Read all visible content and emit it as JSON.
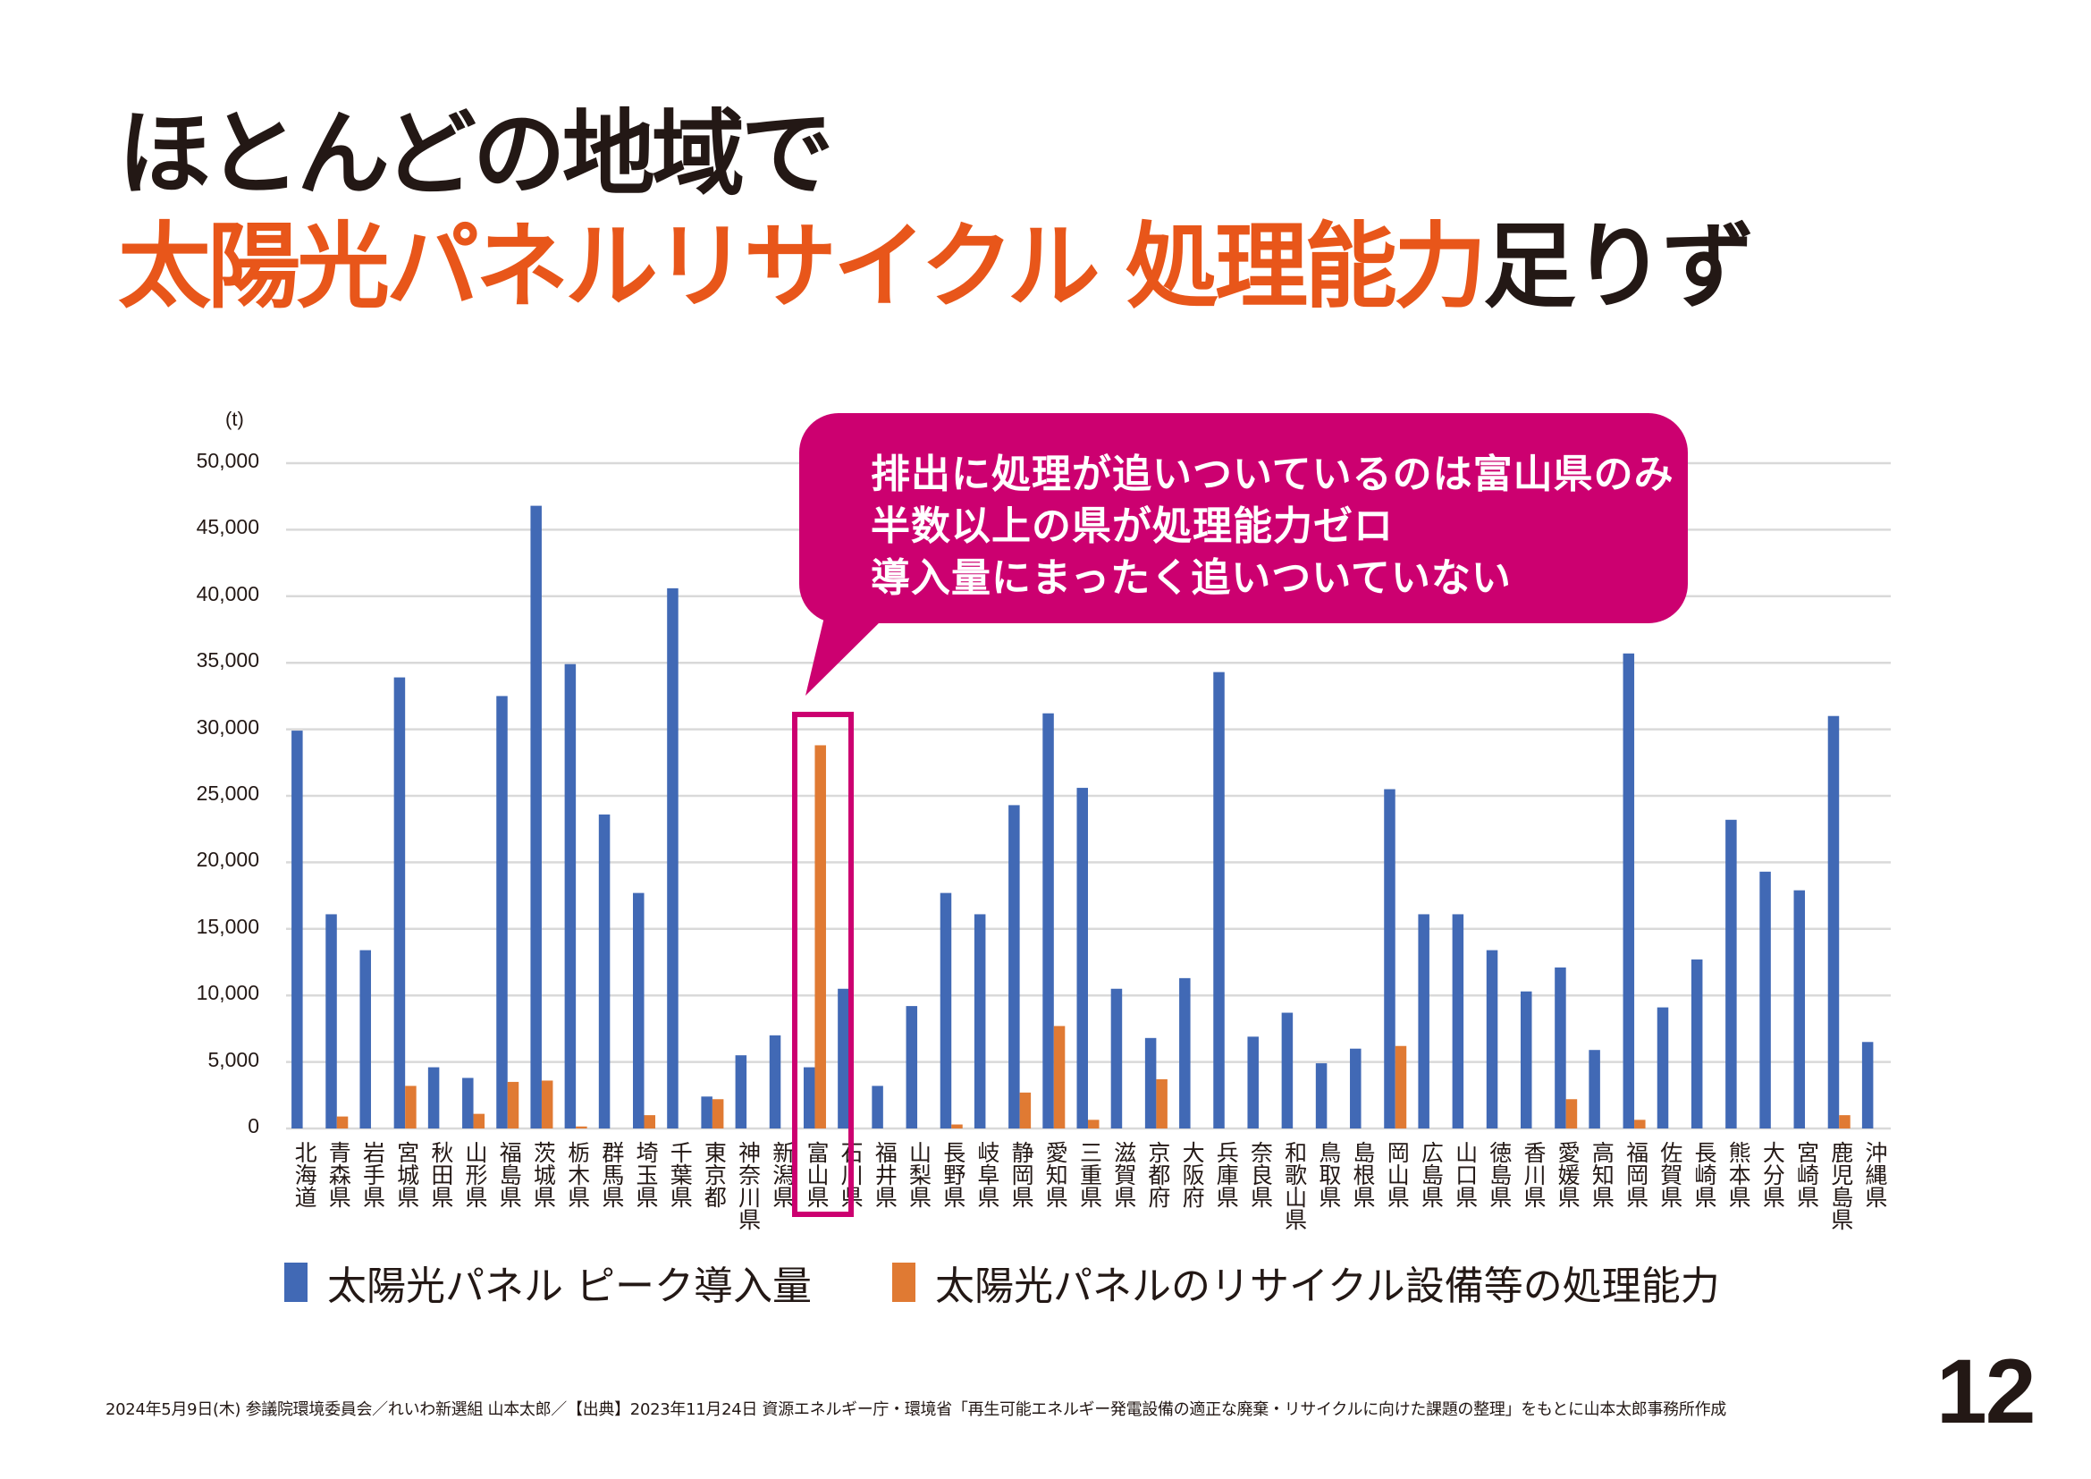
{
  "title": {
    "line1": "ほとんどの地域で",
    "line2_accent": "太陽光パネルリサイクル 処理能力",
    "line2_tail": "足りず"
  },
  "callout": {
    "lines": [
      "排出に処理が追いついているのは富山県のみ",
      "半数以上の県が処理能力ゼロ",
      "導入量にまったく追いついていない"
    ],
    "highlighted_category": "富山県"
  },
  "colors": {
    "title_accent": "#E8561A",
    "callout": "#CC0070",
    "series_peak": "#4169B5",
    "series_capacity": "#E07A33",
    "grid": "#D9D9D9"
  },
  "chart_data": {
    "type": "bar",
    "title": "",
    "xlabel": "",
    "ylabel": "(t)",
    "ylim": [
      0,
      50000
    ],
    "yticks": [
      0,
      5000,
      10000,
      15000,
      20000,
      25000,
      30000,
      35000,
      40000,
      45000,
      50000
    ],
    "ytick_labels": [
      "0",
      "5,000",
      "10,000",
      "15,000",
      "20,000",
      "25,000",
      "30,000",
      "35,000",
      "40,000",
      "45,000",
      "50,000"
    ],
    "grid": true,
    "legend_position": "bottom",
    "categories": [
      "北海道",
      "青森県",
      "岩手県",
      "宮城県",
      "秋田県",
      "山形県",
      "福島県",
      "茨城県",
      "栃木県",
      "群馬県",
      "埼玉県",
      "千葉県",
      "東京都",
      "神奈川県",
      "新潟県",
      "富山県",
      "石川県",
      "福井県",
      "山梨県",
      "長野県",
      "岐阜県",
      "静岡県",
      "愛知県",
      "三重県",
      "滋賀県",
      "京都府",
      "大阪府",
      "兵庫県",
      "奈良県",
      "和歌山県",
      "鳥取県",
      "島根県",
      "岡山県",
      "広島県",
      "山口県",
      "徳島県",
      "香川県",
      "愛媛県",
      "高知県",
      "福岡県",
      "佐賀県",
      "長崎県",
      "熊本県",
      "大分県",
      "宮崎県",
      "鹿児島県",
      "沖縄県"
    ],
    "series": [
      {
        "name": "太陽光パネル ピーク導入量",
        "color": "#4169B5",
        "values": [
          29900,
          16100,
          13400,
          33900,
          4600,
          3800,
          32500,
          46800,
          34900,
          23600,
          17700,
          40600,
          2400,
          5500,
          7000,
          4600,
          10500,
          3200,
          9200,
          17700,
          16100,
          24300,
          31200,
          25600,
          10500,
          6800,
          11300,
          34300,
          6900,
          8700,
          4900,
          6000,
          25500,
          16100,
          16100,
          13400,
          10300,
          12100,
          5900,
          35700,
          9100,
          12700,
          23200,
          19300,
          17900,
          31000,
          6500
        ]
      },
      {
        "name": "太陽光パネルのリサイクル設備等の処理能力",
        "color": "#E07A33",
        "values": [
          0,
          900,
          0,
          3200,
          0,
          1100,
          3500,
          3600,
          150,
          0,
          1000,
          0,
          2200,
          0,
          0,
          28800,
          0,
          0,
          0,
          300,
          0,
          2700,
          7700,
          650,
          0,
          3700,
          0,
          0,
          0,
          0,
          0,
          0,
          6200,
          0,
          0,
          0,
          0,
          2200,
          0,
          650,
          0,
          0,
          0,
          0,
          0,
          1000,
          0
        ]
      }
    ]
  },
  "legend": [
    {
      "label": "太陽光パネル ピーク導入量",
      "color": "#4169B5"
    },
    {
      "label": "太陽光パネルのリサイクル設備等の処理能力",
      "color": "#E07A33"
    }
  ],
  "footer": {
    "text": "2024年5月9日(木) 参議院環境委員会／れいわ新選組 山本太郎／【出典】2023年11月24日  資源エネルギー庁・環境省「再生可能エネルギー発電設備の適正な廃棄・リサイクルに向けた課題の整理」をもとに山本太郎事務所作成"
  },
  "page_number": "12"
}
